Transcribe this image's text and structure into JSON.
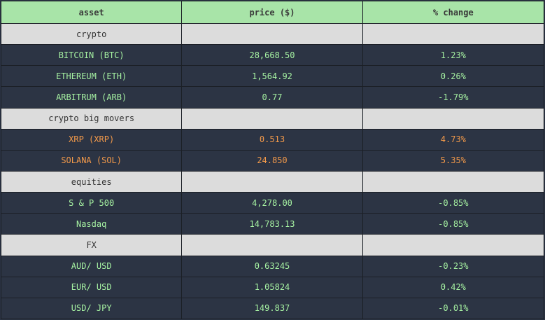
{
  "columns": {
    "asset": "asset",
    "price": "price ($)",
    "change": "% change"
  },
  "groups": {
    "crypto": {
      "label": "crypto",
      "rows": [
        {
          "asset": "BITCOIN (BTC)",
          "price": "28,668.50",
          "change": "1.23%"
        },
        {
          "asset": "ETHEREUM (ETH)",
          "price": "1,564.92",
          "change": "0.26%"
        },
        {
          "asset": "ARBITRUM (ARB)",
          "price": "0.77",
          "change": "-1.79%"
        }
      ]
    },
    "movers": {
      "label": "crypto big movers",
      "rows": [
        {
          "asset": "XRP (XRP)",
          "price": "0.513",
          "change": "4.73%"
        },
        {
          "asset": "SOLANA (SOL)",
          "price": "24.850",
          "change": "5.35%"
        }
      ]
    },
    "equities": {
      "label": "equities",
      "rows": [
        {
          "asset": "S & P 500",
          "price": "4,278.00",
          "change": "-0.85%"
        },
        {
          "asset": "Nasdaq",
          "price": "14,783.13",
          "change": "-0.85%"
        }
      ]
    },
    "fx": {
      "label": "FX",
      "rows": [
        {
          "asset": "AUD/ USD",
          "price": "0.63245",
          "change": "-0.23%"
        },
        {
          "asset": "EUR/ USD",
          "price": "1.05824",
          "change": "0.42%"
        },
        {
          "asset": "USD/ JPY",
          "price": "149.837",
          "change": "-0.01%"
        }
      ]
    }
  },
  "colors": {
    "header_bg": "#a8e4a8",
    "group_bg": "#dcdcdc",
    "row_bg": "#2c3444",
    "row_text": "#a6f2a2",
    "mover_text": "#f2994a"
  }
}
